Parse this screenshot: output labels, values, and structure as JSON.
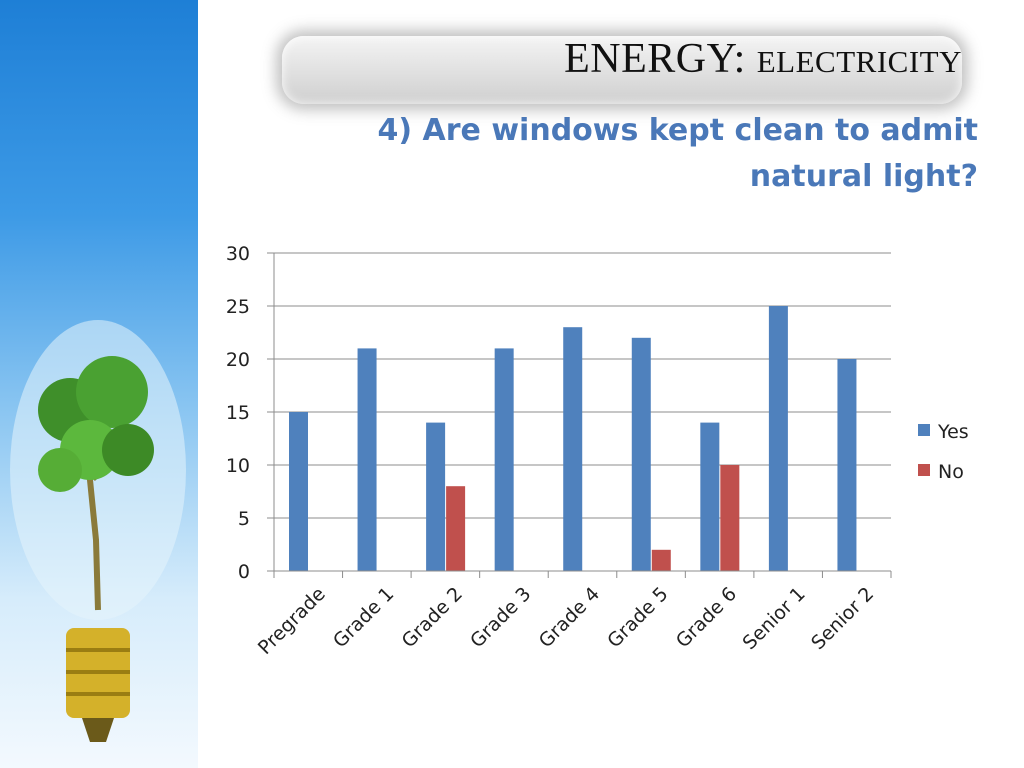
{
  "slide": {
    "title_main": "ENERGY:",
    "title_sub": "ELECTRICITY",
    "question": "4) Are windows kept clean to admit natural light?"
  },
  "colors": {
    "yes": "#4f81bd",
    "no": "#c0504d",
    "title_bar": "#d9d9d9",
    "question_text": "#4a78b8"
  },
  "icons": [
    "lightbulb-tree-image"
  ],
  "chart_data": {
    "type": "bar",
    "title": "",
    "xlabel": "",
    "ylabel": "",
    "categories": [
      "Pregrade",
      "Grade 1",
      "Grade 2",
      "Grade 3",
      "Grade 4",
      "Grade 5",
      "Grade 6",
      "Senior 1",
      "Senior 2"
    ],
    "series": [
      {
        "name": "Yes",
        "values": [
          15,
          21,
          14,
          21,
          23,
          22,
          14,
          25,
          20
        ]
      },
      {
        "name": "No",
        "values": [
          0,
          0,
          8,
          0,
          0,
          2,
          10,
          0,
          0
        ]
      }
    ],
    "ylim": [
      0,
      30
    ],
    "yticks": [
      0,
      5,
      10,
      15,
      20,
      25,
      30
    ],
    "grid": true,
    "legend": "right"
  }
}
